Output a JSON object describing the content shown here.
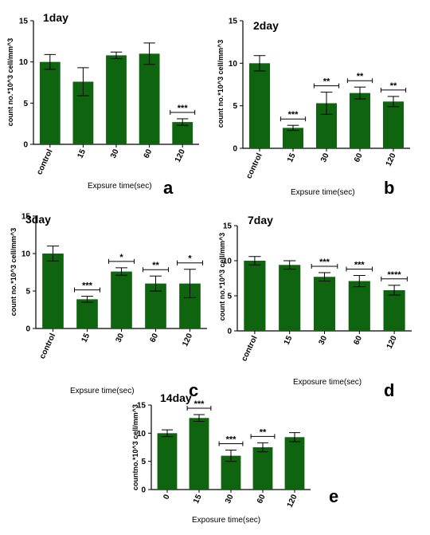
{
  "figure": {
    "bar_color": "#0f640f",
    "axis_color": "#000000"
  },
  "chart_data": [
    {
      "type": "bar",
      "title": "1day",
      "panel_letter": "a",
      "categories": [
        "control",
        "15",
        "30",
        "60",
        "120"
      ],
      "values": [
        10.0,
        7.6,
        10.8,
        11.0,
        2.7
      ],
      "errors": [
        0.9,
        1.7,
        0.4,
        1.3,
        0.4
      ],
      "significance": [
        "",
        "",
        "",
        "",
        "***"
      ],
      "ylabel": "count no.*10^3 cell/mm^3",
      "xlabel": "Expsure time(sec)",
      "ylim": [
        0,
        15
      ],
      "yticks": [
        0,
        5,
        10,
        15
      ]
    },
    {
      "type": "bar",
      "title": "2day",
      "panel_letter": "b",
      "categories": [
        "control",
        "15",
        "30",
        "60",
        "120"
      ],
      "values": [
        10.0,
        2.4,
        5.3,
        6.5,
        5.5
      ],
      "errors": [
        0.9,
        0.3,
        1.3,
        0.7,
        0.6
      ],
      "significance": [
        "",
        "***",
        "**",
        "**",
        "**"
      ],
      "ylabel": "count no.*10^3 cell/mm^3",
      "xlabel": "Expsure time(sec)",
      "ylim": [
        0,
        15
      ],
      "yticks": [
        0,
        5,
        10,
        15
      ]
    },
    {
      "type": "bar",
      "title": "3day",
      "panel_letter": "c",
      "categories": [
        "control",
        "15",
        "30",
        "60",
        "120"
      ],
      "values": [
        10.0,
        3.9,
        7.6,
        6.0,
        6.0
      ],
      "errors": [
        1.0,
        0.4,
        0.5,
        1.0,
        1.9
      ],
      "significance": [
        "",
        "***",
        "*",
        "**",
        "*"
      ],
      "ylabel": "count no.*10^3 cell/mm^3",
      "xlabel": "Expsure time(sec)",
      "ylim": [
        0,
        15
      ],
      "yticks": [
        0,
        5,
        10,
        15
      ]
    },
    {
      "type": "bar",
      "title": "7day",
      "panel_letter": "d",
      "categories": [
        "control",
        "15",
        "30",
        "60",
        "120"
      ],
      "values": [
        10.0,
        9.4,
        7.7,
        7.1,
        5.8
      ],
      "errors": [
        0.6,
        0.6,
        0.6,
        0.8,
        0.7
      ],
      "significance": [
        "",
        "",
        "***",
        "***",
        "****"
      ],
      "ylabel": "count no.*10^3 cell/mm^3",
      "xlabel": "Exposure time(sec)",
      "ylim": [
        0,
        15
      ],
      "yticks": [
        0,
        5,
        10,
        15
      ]
    },
    {
      "type": "bar",
      "title": "14day",
      "panel_letter": "e",
      "categories": [
        "0",
        "15",
        "30",
        "60",
        "120"
      ],
      "values": [
        10.0,
        12.7,
        6.0,
        7.5,
        9.3
      ],
      "errors": [
        0.6,
        0.6,
        1.0,
        0.8,
        0.8
      ],
      "significance": [
        "",
        "***",
        "***",
        "**",
        ""
      ],
      "ylabel": "countno.*10^3 cell/mm^3",
      "xlabel": "Exposure time(sec)",
      "ylim": [
        0,
        15
      ],
      "yticks": [
        0,
        5,
        10,
        15
      ]
    }
  ]
}
